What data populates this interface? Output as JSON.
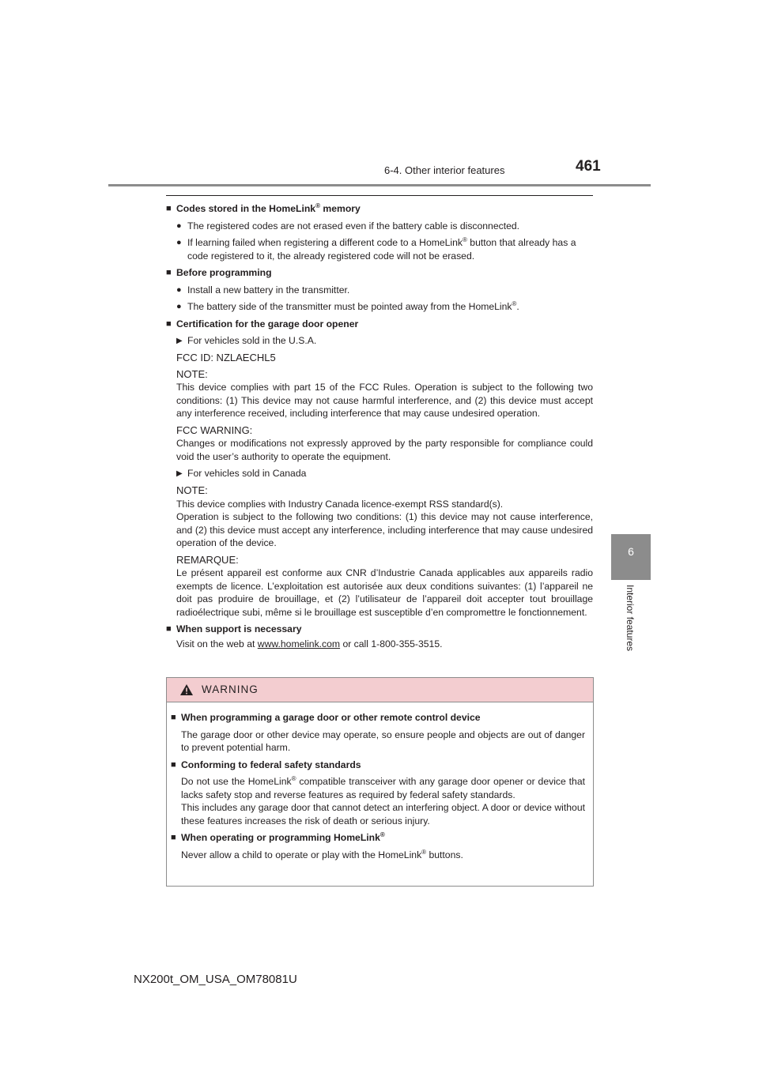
{
  "header": {
    "section": "6-4. Other interior features",
    "page_number": "461"
  },
  "side_tab": {
    "number": "6",
    "label": "Interior features"
  },
  "sections": {
    "codes": {
      "heading_pre": "Codes stored in the HomeLink",
      "heading_post": " memory",
      "b1": "The registered codes are not erased even if the battery cable is disconnected.",
      "b2_pre": "If learning failed when registering a different code to a HomeLink",
      "b2_post": " button that already has a code registered to it, the already registered code will not be erased."
    },
    "before": {
      "heading": "Before programming",
      "b1": "Install a new battery in the transmitter.",
      "b2_pre": "The battery side of the transmitter must be pointed away from the HomeLink",
      "b2_post": "."
    },
    "cert": {
      "heading": "Certification for the garage door opener",
      "usa": "For vehicles sold in the U.S.A.",
      "fcc_id": "FCC ID: NZLAECHL5",
      "note_title": "NOTE:",
      "note_body": "This device complies with part 15 of the FCC Rules. Operation is subject to the following two conditions: (1) This device may not cause harmful interference, and (2) this device must accept any interference received, including interference that may cause undesired operation.",
      "warn_title": "FCC WARNING:",
      "warn_body": "Changes or modifications not expressly approved by the party responsible for compliance could void the user’s authority to operate the equipment.",
      "canada": "For vehicles sold in Canada",
      "ca_note_title": "NOTE:",
      "ca_note_l1": "This device complies with Industry Canada licence-exempt RSS standard(s).",
      "ca_note_l2": "Operation is subject to the following two conditions: (1) this device may not cause interference, and (2) this device must accept any interference, including interference that may cause undesired operation of the device.",
      "remarque_title": "REMARQUE:",
      "remarque_body": "Le présent appareil est conforme aux CNR d’Industrie Canada applicables aux appareils radio exempts de licence. L’exploitation est autorisée aux deux conditions suivantes: (1) l’appareil ne doit pas produire de brouillage, et (2) l’utilisateur de l’appareil doit accepter tout brouillage radioélectrique subi, même si le brouillage est susceptible d’en compromettre le fonctionnement."
    },
    "support": {
      "heading": "When support is necessary",
      "text_pre": "Visit on the web at ",
      "link": "www.homelink.com",
      "text_post": " or call 1-800-355-3515."
    }
  },
  "warning": {
    "title": "WARNING",
    "h1": "When programming a garage door or other remote control device",
    "p1": "The garage door or other device may operate, so ensure people and objects are out of danger to prevent potential harm.",
    "h2": "Conforming to federal safety standards",
    "p2_pre": "Do not use the HomeLink",
    "p2_post": " compatible transceiver with any garage door opener or device that lacks safety stop and reverse features as required by federal safety standards.",
    "p2b": "This includes any garage door that cannot detect an interfering object. A door or device without these features increases the risk of death or serious injury.",
    "h3_pre": "When operating or programming HomeLink",
    "p3_pre": "Never allow a child to operate or play with the HomeLink",
    "p3_post": " buttons."
  },
  "symbols": {
    "square": "■",
    "dot": "●",
    "arrow": "▶",
    "reg": "®"
  },
  "footer": {
    "doc_code": "NX200t_OM_USA_OM78081U"
  }
}
